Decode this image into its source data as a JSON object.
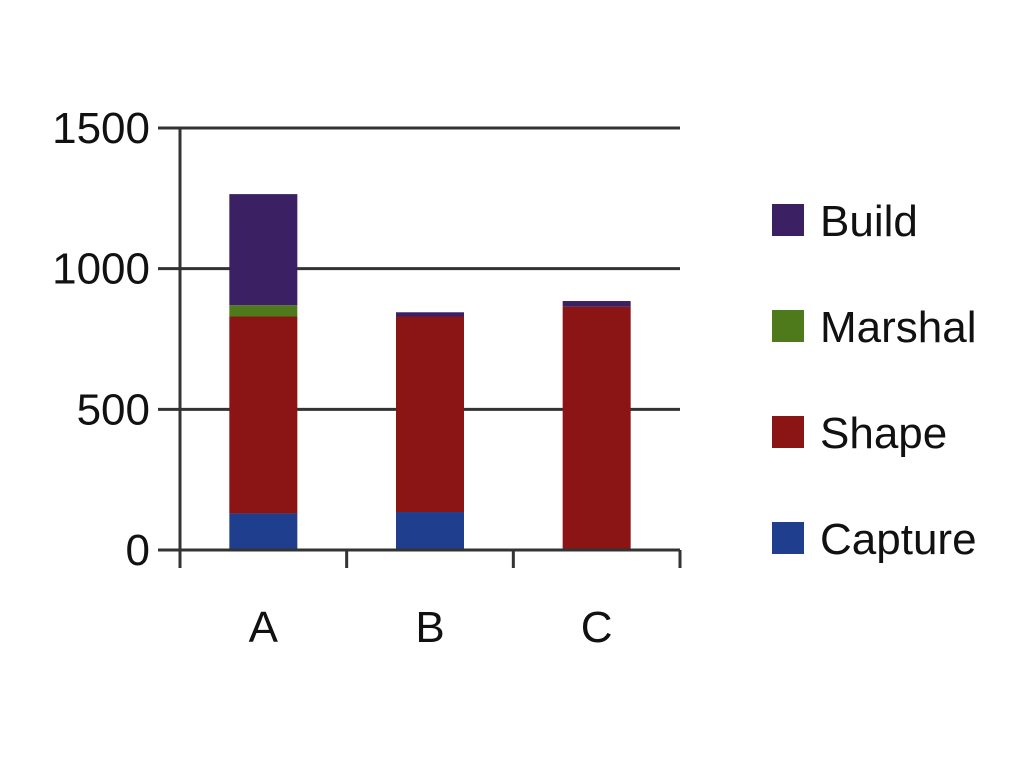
{
  "chart_data": {
    "type": "bar",
    "stacked": true,
    "title": "",
    "xlabel": "",
    "ylabel": "",
    "categories": [
      "A",
      "B",
      "C"
    ],
    "ylim": [
      0,
      1500
    ],
    "yticks": [
      0,
      500,
      1000,
      1500
    ],
    "grid": true,
    "legend_position": "right",
    "series": [
      {
        "name": "Capture",
        "color": "#1f3e8e",
        "values": [
          130,
          135,
          0
        ]
      },
      {
        "name": "Shape",
        "color": "#8b1414",
        "values": [
          700,
          695,
          865
        ]
      },
      {
        "name": "Marshal",
        "color": "#4f7a1c",
        "values": [
          40,
          0,
          0
        ]
      },
      {
        "name": "Build",
        "color": "#3b2063",
        "values": [
          395,
          15,
          20
        ]
      }
    ],
    "legend_order": [
      "Build",
      "Marshal",
      "Shape",
      "Capture"
    ]
  }
}
